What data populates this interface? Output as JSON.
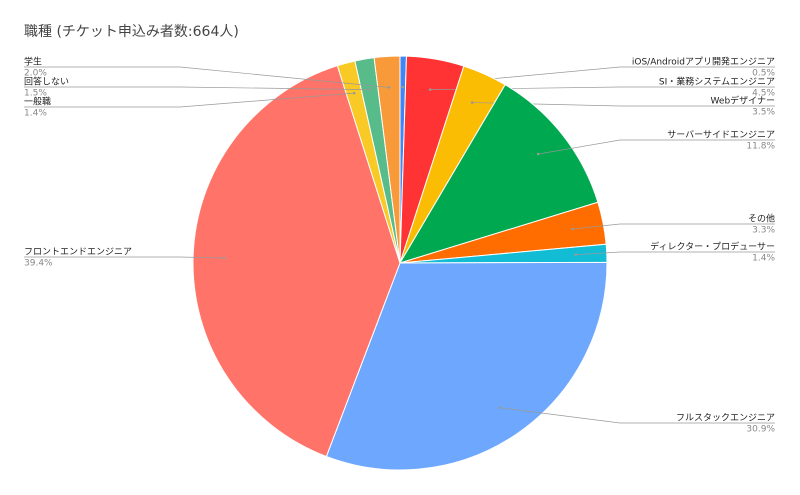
{
  "chart_data": {
    "type": "pie",
    "title": "職種 (チケット申込み者数:664人)",
    "categories": [
      "iOS/Androidアプリ開発エンジニア",
      "SI・業務システムエンジニア",
      "Webデザイナー",
      "サーバーサイドエンジニア",
      "その他",
      "ディレクター・プロデューサー",
      "フルスタックエンジニア",
      "フロントエンドエンジニア",
      "一般職",
      "回答しない",
      "学生"
    ],
    "values": [
      0.5,
      4.5,
      3.5,
      11.8,
      3.3,
      1.4,
      30.9,
      39.4,
      1.4,
      1.5,
      2.0
    ],
    "value_labels": [
      "0.5%",
      "4.5%",
      "3.5%",
      "11.8%",
      "3.3%",
      "1.4%",
      "30.9%",
      "39.4%",
      "1.4%",
      "1.5%",
      "2.0%"
    ],
    "colors": [
      "#4285f4",
      "#ff3333",
      "#fbbc04",
      "#00a94f",
      "#ff6d01",
      "#12bcd4",
      "#6ea8fe",
      "#ff7369",
      "#f9c925",
      "#57bb8a",
      "#f89a3a"
    ]
  }
}
